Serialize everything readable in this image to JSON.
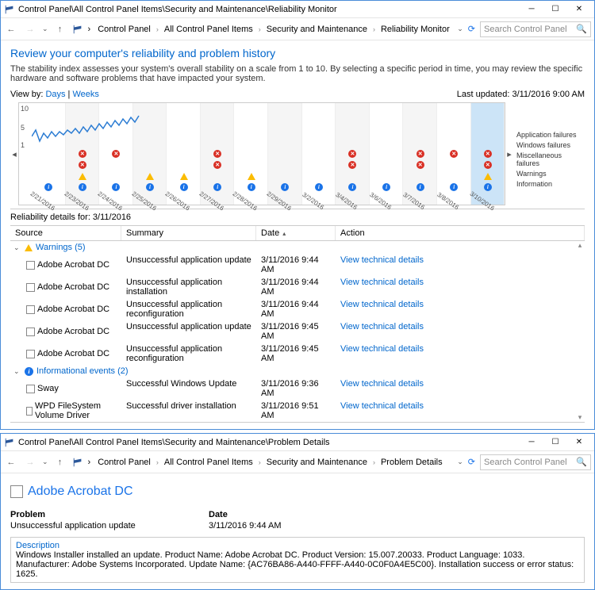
{
  "window1": {
    "title": "Control Panel\\All Control Panel Items\\Security and Maintenance\\Reliability Monitor",
    "breadcrumb": [
      "Control Panel",
      "All Control Panel Items",
      "Security and Maintenance",
      "Reliability Monitor"
    ],
    "searchPlaceholder": "Search Control Panel",
    "pageTitle": "Review your computer's reliability and problem history",
    "description": "The stability index assesses your system's overall stability on a scale from 1 to 10. By selecting a specific period in time, you may review the specific hardware and software problems that have impacted your system.",
    "viewByLabel": "View by:",
    "viewByDays": "Days",
    "viewByWeeks": "Weeks",
    "lastUpdated": "Last updated: 3/11/2016 9:00 AM",
    "yaxis": {
      "top": "10",
      "mid": "5",
      "bot": "1"
    },
    "legendItems": [
      "Application failures",
      "Windows failures",
      "Miscellaneous failures",
      "Warnings",
      "Information"
    ],
    "dates": [
      "2/21/2016",
      "2/23/2016",
      "2/24/2016",
      "2/25/2016",
      "2/26/2016",
      "2/27/2016",
      "2/28/2016",
      "2/29/2016",
      "3/2/2016",
      "3/4/2016",
      "3/6/2016",
      "3/7/2016",
      "3/8/2016",
      "3/10/2016"
    ],
    "chart": {
      "line_points": [
        42,
        34,
        48,
        38,
        44,
        36,
        42,
        36,
        40,
        34,
        38,
        32,
        38,
        30,
        36,
        28,
        34,
        26,
        32,
        24,
        30,
        22,
        28,
        20,
        26,
        18,
        24,
        16
      ],
      "line_color": "#2b7cd3",
      "columns": 14,
      "selected_index": 13,
      "alt_bg": "#f5f5f5",
      "sel_bg": "#cce4f7",
      "app_fail_cols": [
        1,
        2,
        5,
        9,
        11,
        12,
        13
      ],
      "win_fail_cols": [
        1,
        5,
        9,
        11,
        13
      ],
      "warn_cols": [
        1,
        3,
        4,
        6,
        13
      ],
      "info_all": true
    },
    "detailsFor": "Reliability details for: 3/11/2016",
    "columns": {
      "source": "Source",
      "summary": "Summary",
      "date": "Date",
      "action": "Action"
    },
    "warningsLabel": "Warnings (5)",
    "infoLabel": "Informational events (2)",
    "viewDetails": "View  technical details",
    "warnings": [
      {
        "src": "Adobe Acrobat DC",
        "sum": "Unsuccessful application update",
        "date": "3/11/2016 9:44 AM"
      },
      {
        "src": "Adobe Acrobat DC",
        "sum": "Unsuccessful application installation",
        "date": "3/11/2016 9:44 AM"
      },
      {
        "src": "Adobe Acrobat DC",
        "sum": "Unsuccessful application reconfiguration",
        "date": "3/11/2016 9:44 AM"
      },
      {
        "src": "Adobe Acrobat DC",
        "sum": "Unsuccessful application update",
        "date": "3/11/2016 9:45 AM"
      },
      {
        "src": "Adobe Acrobat DC",
        "sum": "Unsuccessful application reconfiguration",
        "date": "3/11/2016 9:45 AM"
      }
    ],
    "infos": [
      {
        "src": "Sway",
        "sum": "Successful Windows Update",
        "date": "3/11/2016 9:36 AM"
      },
      {
        "src": "WPD FileSystem Volume Driver",
        "sum": "Successful driver installation",
        "date": "3/11/2016 9:51 AM"
      }
    ]
  },
  "window2": {
    "title": "Control Panel\\All Control Panel Items\\Security and Maintenance\\Problem Details",
    "breadcrumb": [
      "Control Panel",
      "All Control Panel Items",
      "Security and Maintenance",
      "Problem Details"
    ],
    "searchPlaceholder": "Search Control Panel",
    "sectionTitle": "Adobe Acrobat DC",
    "problemLabel": "Problem",
    "dateLabel": "Date",
    "problemText": "Unsuccessful application update",
    "dateText": "3/11/2016 9:44 AM",
    "descLabel": "Description",
    "descText": "Windows Installer installed an update. Product Name: Adobe Acrobat DC. Product Version: 15.007.20033. Product Language: 1033. Manufacturer: Adobe Systems Incorporated. Update Name: {AC76BA86-A440-FFFF-A440-0C0F0A4E5C00}. Installation success or error status: 1625."
  }
}
